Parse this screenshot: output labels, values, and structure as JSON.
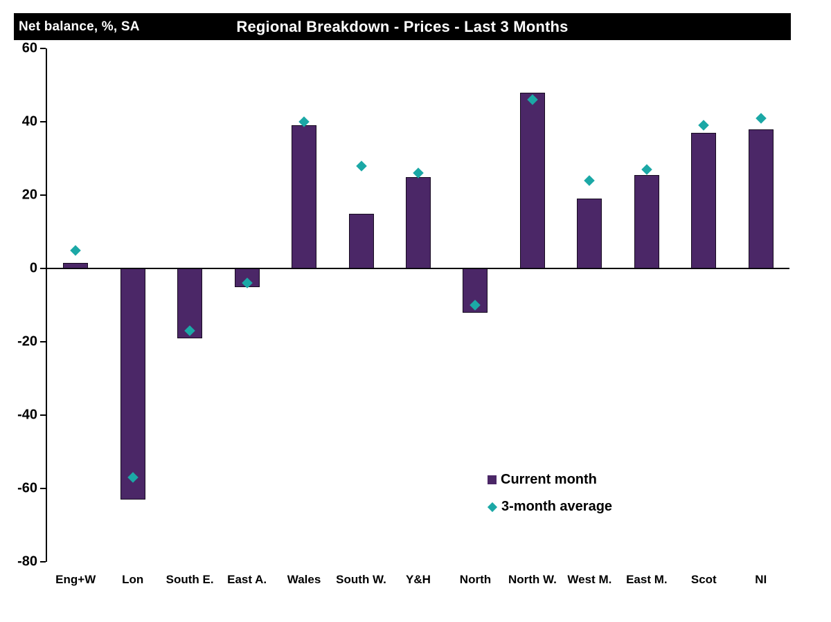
{
  "header": {
    "corner_label": "Net balance, %, SA",
    "title": "Regional Breakdown - Prices - Last 3 Months"
  },
  "chart_data": {
    "type": "bar",
    "title": "Regional Breakdown - Prices - Last 3 Months",
    "ylabel": "Net balance, %, SA",
    "xlabel": "",
    "categories": [
      "Eng+W",
      "Lon",
      "South E.",
      "East A.",
      "Wales",
      "South W.",
      "Y&H",
      "North",
      "North W.",
      "West M.",
      "East M.",
      "Scot",
      "NI"
    ],
    "series": [
      {
        "name": "Current month",
        "type": "bar",
        "color": "#4B2767",
        "values": [
          1.5,
          -63,
          -19,
          -5,
          39,
          15,
          25,
          -12,
          48,
          19,
          25.5,
          37,
          38
        ]
      },
      {
        "name": "3-month average",
        "type": "scatter-diamond",
        "color": "#1BA8A6",
        "values": [
          5,
          -57,
          -17,
          -4,
          40,
          28,
          26,
          -10,
          46,
          24,
          27,
          39,
          41
        ]
      }
    ],
    "ylim": [
      -80,
      60
    ],
    "yticks": [
      60,
      40,
      20,
      0,
      -20,
      -40,
      -60,
      -80
    ],
    "grid": false,
    "legend_position": "inside-bottom-right",
    "colors": {
      "header_bg": "#000000",
      "header_text": "#ffffff",
      "bar_fill": "#4B2767",
      "diamond_fill": "#1BA8A6",
      "axis": "#000000"
    }
  }
}
